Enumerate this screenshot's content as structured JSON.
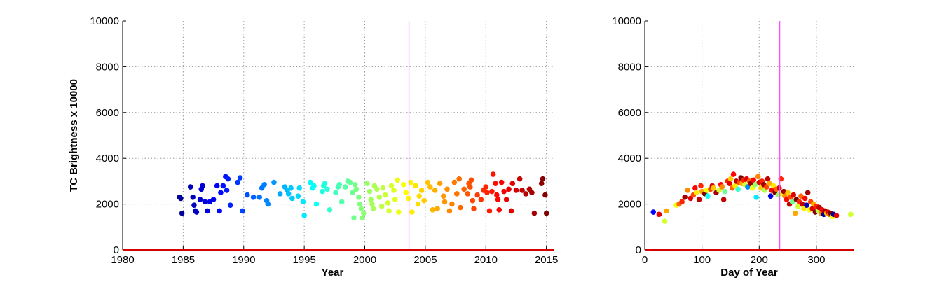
{
  "chart_data": [
    {
      "type": "scatter",
      "xlabel": "Year",
      "ylabel": "TC Brightness x 10000",
      "xlim": [
        1980,
        2015.6
      ],
      "ylim": [
        0,
        10000
      ],
      "xticks": [
        1980,
        1985,
        1990,
        1995,
        2000,
        2005,
        2010,
        2015
      ],
      "yticks": [
        0,
        2000,
        4000,
        6000,
        8000,
        10000
      ],
      "grid": true,
      "colormap": "jet",
      "color_range": [
        1984,
        2015
      ],
      "reference_line_x": 2003.65,
      "reference_line_color": "#ff44ff",
      "baseline_color": "#d40000",
      "points": [
        [
          1984.7,
          2300
        ],
        [
          1984.8,
          2250
        ],
        [
          1984.9,
          1600
        ],
        [
          1985.6,
          2750
        ],
        [
          1985.8,
          2300
        ],
        [
          1985.9,
          1950
        ],
        [
          1986.0,
          1700
        ],
        [
          1986.1,
          1650
        ],
        [
          1986.4,
          2200
        ],
        [
          1986.5,
          2650
        ],
        [
          1986.6,
          2800
        ],
        [
          1986.8,
          2100
        ],
        [
          1987.0,
          1700
        ],
        [
          1987.2,
          2100
        ],
        [
          1987.5,
          2200
        ],
        [
          1987.8,
          2800
        ],
        [
          1988.0,
          1700
        ],
        [
          1988.1,
          2500
        ],
        [
          1988.3,
          2800
        ],
        [
          1988.5,
          3200
        ],
        [
          1988.6,
          2600
        ],
        [
          1988.7,
          3100
        ],
        [
          1988.9,
          1950
        ],
        [
          1989.5,
          2950
        ],
        [
          1989.7,
          3150
        ],
        [
          1989.9,
          1700
        ],
        [
          1990.3,
          2400
        ],
        [
          1990.8,
          2300
        ],
        [
          1991.3,
          2300
        ],
        [
          1991.5,
          2700
        ],
        [
          1991.7,
          2850
        ],
        [
          1991.9,
          2150
        ],
        [
          1992.0,
          2000
        ],
        [
          1992.5,
          2950
        ],
        [
          1993.0,
          2450
        ],
        [
          1993.4,
          2750
        ],
        [
          1993.6,
          2600
        ],
        [
          1993.7,
          2450
        ],
        [
          1993.9,
          2700
        ],
        [
          1994.0,
          2250
        ],
        [
          1994.5,
          2350
        ],
        [
          1994.6,
          2700
        ],
        [
          1994.9,
          2100
        ],
        [
          1995.0,
          1500
        ],
        [
          1995.5,
          2950
        ],
        [
          1995.7,
          2700
        ],
        [
          1995.8,
          2800
        ],
        [
          1996.0,
          2000
        ],
        [
          1996.5,
          2550
        ],
        [
          1996.6,
          2800
        ],
        [
          1996.7,
          2900
        ],
        [
          1996.9,
          2650
        ],
        [
          1997.1,
          1750
        ],
        [
          1997.6,
          2500
        ],
        [
          1997.8,
          2750
        ],
        [
          1997.9,
          2850
        ],
        [
          1998.1,
          2100
        ],
        [
          1998.4,
          2750
        ],
        [
          1998.6,
          3000
        ],
        [
          1998.8,
          2950
        ],
        [
          1999.0,
          2500
        ],
        [
          1999.1,
          1400
        ],
        [
          1999.2,
          2850
        ],
        [
          1999.3,
          2650
        ],
        [
          1999.5,
          2300
        ],
        [
          1999.6,
          2000
        ],
        [
          1999.7,
          1800
        ],
        [
          1999.8,
          1400
        ],
        [
          1999.9,
          1600
        ],
        [
          2000.2,
          2900
        ],
        [
          2000.4,
          2550
        ],
        [
          2000.5,
          2200
        ],
        [
          2000.6,
          2000
        ],
        [
          2000.7,
          1800
        ],
        [
          2000.8,
          2800
        ],
        [
          2001.0,
          2650
        ],
        [
          2001.2,
          2300
        ],
        [
          2001.4,
          1900
        ],
        [
          2001.5,
          2700
        ],
        [
          2001.7,
          2400
        ],
        [
          2001.9,
          2050
        ],
        [
          2002.0,
          1700
        ],
        [
          2002.2,
          2800
        ],
        [
          2002.4,
          2600
        ],
        [
          2002.5,
          2200
        ],
        [
          2002.7,
          3050
        ],
        [
          2002.8,
          1650
        ],
        [
          2003.2,
          2850
        ],
        [
          2003.4,
          2500
        ],
        [
          2003.6,
          2250
        ],
        [
          2003.8,
          2950
        ],
        [
          2003.9,
          1650
        ],
        [
          2004.2,
          2800
        ],
        [
          2004.4,
          2000
        ],
        [
          2004.5,
          2350
        ],
        [
          2004.7,
          2600
        ],
        [
          2004.9,
          2150
        ],
        [
          2005.2,
          2950
        ],
        [
          2005.4,
          2750
        ],
        [
          2005.6,
          1750
        ],
        [
          2005.8,
          2600
        ],
        [
          2006.0,
          1800
        ],
        [
          2006.2,
          2900
        ],
        [
          2006.5,
          2350
        ],
        [
          2006.6,
          2100
        ],
        [
          2006.8,
          2650
        ],
        [
          2007.0,
          1700
        ],
        [
          2007.2,
          2000
        ],
        [
          2007.4,
          2950
        ],
        [
          2007.6,
          2450
        ],
        [
          2007.8,
          3100
        ],
        [
          2007.9,
          1850
        ],
        [
          2008.2,
          2650
        ],
        [
          2008.5,
          2450
        ],
        [
          2008.6,
          2900
        ],
        [
          2008.7,
          2750
        ],
        [
          2008.8,
          3050
        ],
        [
          2008.9,
          2150
        ],
        [
          2009.0,
          1800
        ],
        [
          2009.3,
          2400
        ],
        [
          2009.6,
          2200
        ],
        [
          2009.8,
          2600
        ],
        [
          2010.0,
          2750
        ],
        [
          2010.1,
          2500
        ],
        [
          2010.3,
          1700
        ],
        [
          2010.5,
          2550
        ],
        [
          2010.6,
          3300
        ],
        [
          2010.8,
          2900
        ],
        [
          2010.9,
          2400
        ],
        [
          2011.0,
          2200
        ],
        [
          2011.1,
          1750
        ],
        [
          2011.3,
          2950
        ],
        [
          2011.5,
          2550
        ],
        [
          2011.7,
          2200
        ],
        [
          2011.9,
          2650
        ],
        [
          2012.1,
          1700
        ],
        [
          2012.2,
          2900
        ],
        [
          2012.5,
          2600
        ],
        [
          2012.8,
          3100
        ],
        [
          2013.0,
          2600
        ],
        [
          2013.3,
          2450
        ],
        [
          2013.6,
          2650
        ],
        [
          2013.8,
          2500
        ],
        [
          2014.0,
          1600
        ],
        [
          2014.6,
          2900
        ],
        [
          2014.7,
          3100
        ],
        [
          2014.9,
          2400
        ],
        [
          2015.0,
          1600
        ]
      ]
    },
    {
      "type": "scatter",
      "xlabel": "Day of Year",
      "ylabel": "",
      "xlim": [
        0,
        365
      ],
      "ylim": [
        0,
        10000
      ],
      "xticks": [
        0,
        100,
        200,
        300
      ],
      "yticks": [
        0,
        2000,
        4000,
        6000,
        8000,
        10000
      ],
      "grid": true,
      "colormap": "jet",
      "color_range": [
        1984,
        2015
      ],
      "reference_line_x": 236,
      "reference_line_color": "#ff44ff",
      "baseline_color": "#d40000",
      "points": [
        [
          15,
          1650,
          1988
        ],
        [
          25,
          1550,
          2012
        ],
        [
          35,
          1250,
          2002
        ],
        [
          38,
          1700,
          2006
        ],
        [
          55,
          1950,
          2003
        ],
        [
          60,
          2000,
          2008
        ],
        [
          65,
          2100,
          2010
        ],
        [
          70,
          2300,
          2014
        ],
        [
          75,
          2600,
          2007
        ],
        [
          80,
          2250,
          2012
        ],
        [
          85,
          2400,
          2009
        ],
        [
          88,
          2700,
          2011
        ],
        [
          90,
          2500,
          2004
        ],
        [
          95,
          2200,
          2013
        ],
        [
          98,
          2800,
          2010
        ],
        [
          100,
          2550,
          2006
        ],
        [
          105,
          2450,
          2015
        ],
        [
          108,
          2600,
          2003
        ],
        [
          110,
          2350,
          1996
        ],
        [
          115,
          2650,
          2009
        ],
        [
          118,
          2800,
          2012
        ],
        [
          120,
          2700,
          2005
        ],
        [
          125,
          2500,
          2014
        ],
        [
          130,
          2600,
          2002
        ],
        [
          133,
          2850,
          2011
        ],
        [
          135,
          2750,
          2007
        ],
        [
          138,
          2200,
          2013
        ],
        [
          140,
          2550,
          1999
        ],
        [
          145,
          3000,
          2010
        ],
        [
          148,
          2900,
          2012
        ],
        [
          150,
          3100,
          2005
        ],
        [
          153,
          2700,
          2008
        ],
        [
          155,
          3300,
          2011
        ],
        [
          158,
          2800,
          2004
        ],
        [
          160,
          3000,
          2013
        ],
        [
          163,
          2650,
          1997
        ],
        [
          165,
          2950,
          2009
        ],
        [
          168,
          3150,
          2015
        ],
        [
          170,
          2900,
          2006
        ],
        [
          173,
          3050,
          2010
        ],
        [
          175,
          2850,
          2002
        ],
        [
          178,
          3100,
          2012
        ],
        [
          180,
          2750,
          1992
        ],
        [
          183,
          3000,
          2008
        ],
        [
          185,
          2900,
          2014
        ],
        [
          188,
          2700,
          2003
        ],
        [
          190,
          3050,
          2011
        ],
        [
          193,
          2850,
          2000
        ],
        [
          195,
          2300,
          1995
        ],
        [
          198,
          3200,
          2007
        ],
        [
          200,
          2950,
          2012
        ],
        [
          203,
          2700,
          2005
        ],
        [
          205,
          3000,
          2010
        ],
        [
          208,
          2850,
          2014
        ],
        [
          210,
          2600,
          2001
        ],
        [
          213,
          2750,
          2009
        ],
        [
          215,
          3100,
          2013
        ],
        [
          218,
          2900,
          2006
        ],
        [
          220,
          2350,
          1987
        ],
        [
          222,
          2600,
          2011
        ],
        [
          225,
          2800,
          2004
        ],
        [
          228,
          2500,
          2015
        ],
        [
          230,
          2650,
          2008
        ],
        [
          233,
          2400,
          2000
        ],
        [
          235,
          2700,
          2012
        ],
        [
          238,
          3100,
          2010
        ],
        [
          240,
          2450,
          2003
        ],
        [
          243,
          2550,
          2014
        ],
        [
          245,
          2350,
          2007
        ],
        [
          248,
          2200,
          2011
        ],
        [
          250,
          2500,
          2005
        ],
        [
          253,
          2000,
          2013
        ],
        [
          255,
          2300,
          2009
        ],
        [
          258,
          2100,
          1999
        ],
        [
          260,
          2400,
          2012
        ],
        [
          263,
          1600,
          2006
        ],
        [
          265,
          2200,
          2015
        ],
        [
          268,
          1900,
          2002
        ],
        [
          270,
          2100,
          2010
        ],
        [
          273,
          2350,
          2008
        ],
        [
          275,
          2000,
          2013
        ],
        [
          278,
          1800,
          2004
        ],
        [
          280,
          2250,
          2011
        ],
        [
          283,
          1950,
          1986
        ],
        [
          285,
          2500,
          2014
        ],
        [
          288,
          1750,
          2003
        ],
        [
          290,
          2100,
          2009
        ],
        [
          293,
          1800,
          2012
        ],
        [
          295,
          2000,
          2006
        ],
        [
          298,
          1650,
          2015
        ],
        [
          300,
          1900,
          2010
        ],
        [
          303,
          1700,
          2001
        ],
        [
          305,
          1850,
          2013
        ],
        [
          308,
          1600,
          2007
        ],
        [
          310,
          1750,
          2011
        ],
        [
          313,
          1550,
          1985
        ],
        [
          315,
          1700,
          2014
        ],
        [
          318,
          1600,
          2005
        ],
        [
          320,
          1650,
          2012
        ],
        [
          323,
          1550,
          2008
        ],
        [
          325,
          1600,
          2015
        ],
        [
          328,
          1450,
          2003
        ],
        [
          330,
          1550,
          1985
        ],
        [
          335,
          1500,
          2012
        ],
        [
          360,
          1550,
          2002
        ]
      ]
    }
  ]
}
